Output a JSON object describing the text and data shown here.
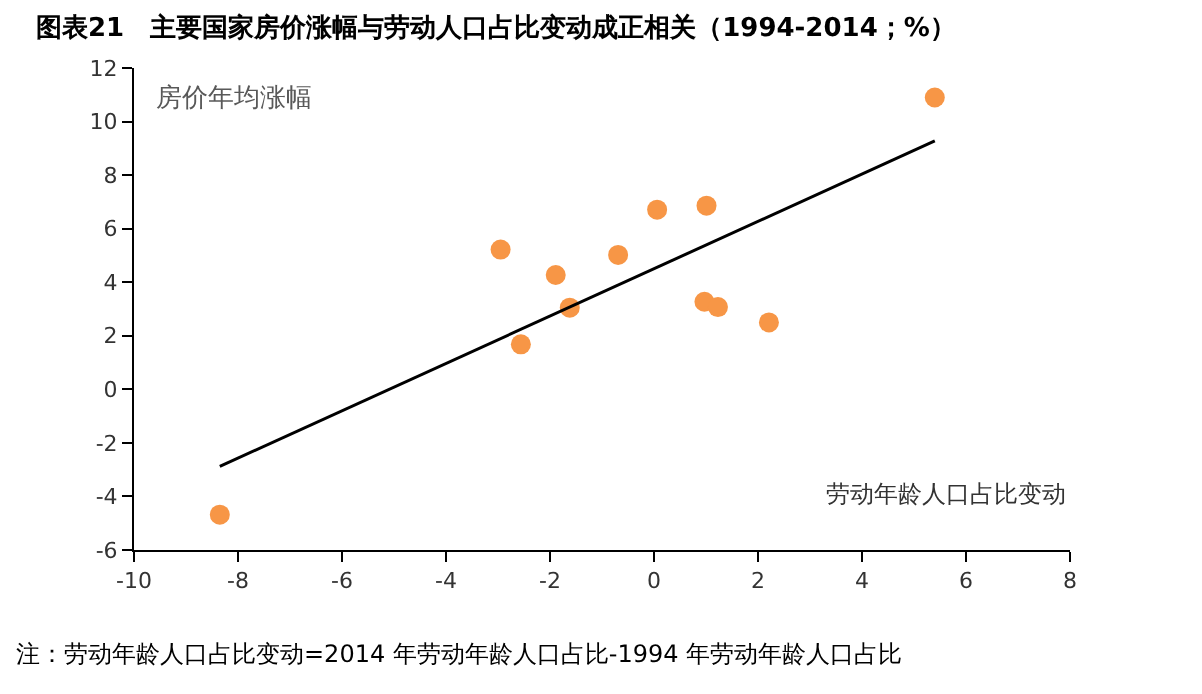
{
  "chart_data": {
    "type": "scatter",
    "title": "图表21　主要国家房价涨幅与劳动人口占比变动成正相关（1994-2014；%）",
    "xlabel": "劳动年龄人口占比变动",
    "ylabel": "房价年均涨幅",
    "xlim": [
      -10,
      8
    ],
    "xticks": [
      -10,
      -8,
      -6,
      -4,
      -2,
      0,
      2,
      4,
      6,
      8
    ],
    "ylim": [
      -6,
      12
    ],
    "yticks": [
      -6,
      -4,
      -2,
      0,
      2,
      4,
      6,
      8,
      10,
      12
    ],
    "series": [
      {
        "marker": "circle",
        "color": "#f79646",
        "x": [
          -8.35,
          -2.95,
          -2.56,
          -1.89,
          -1.62,
          -0.69,
          0.06,
          1.01,
          0.97,
          1.23,
          2.21,
          5.4
        ],
        "values": [
          -4.68,
          5.22,
          1.68,
          4.27,
          3.05,
          5.02,
          6.71,
          6.86,
          3.27,
          3.07,
          2.5,
          10.9
        ]
      },
      {
        "type": "line",
        "marker": "none",
        "color": "#000000",
        "x": [
          -8.35,
          5.4
        ],
        "values": [
          -2.88,
          9.28
        ]
      }
    ],
    "annotations": [
      "注：劳动年龄人口占比变动=2014 年劳动年龄人口占比-1994 年劳动年龄人口占比"
    ]
  }
}
